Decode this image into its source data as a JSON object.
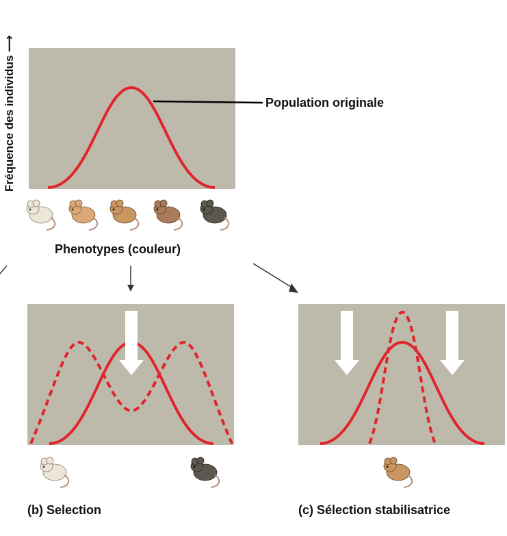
{
  "y_axis_label": "Fréquence des individus",
  "original_label": "Population originale",
  "phenotype_label": "Phenotypes (couleur)",
  "panel_b_caption": "(b) Selection",
  "panel_c_caption": "(c) Sélection stabilisatrice",
  "colors": {
    "panel_background": "#bdbaab",
    "curve": "#e0242c",
    "arrow_fill": "#ffffff"
  },
  "mouse_shades": [
    "#ece6d8",
    "#d9a876",
    "#c99561",
    "#a97b5b",
    "#5c574f"
  ],
  "mouse_shade_names": [
    "white",
    "light-tan",
    "tan",
    "brown",
    "dark-gray"
  ]
}
